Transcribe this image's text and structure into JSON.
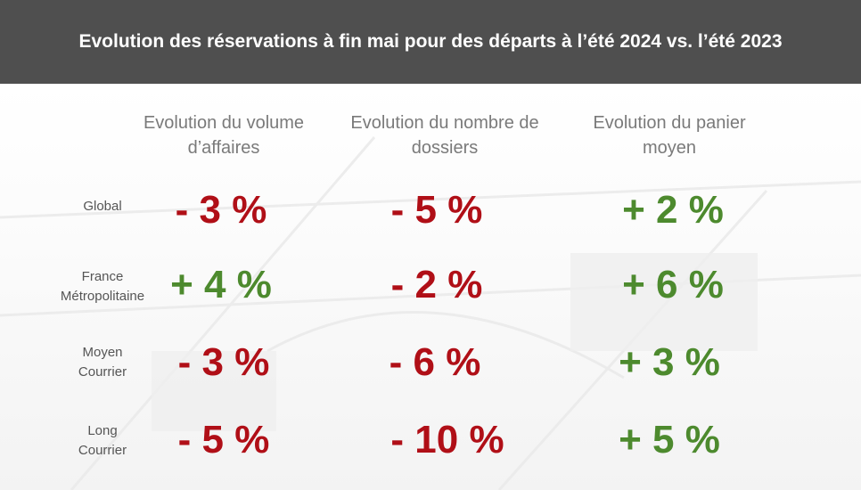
{
  "title": "Evolution des réservations à fin mai pour des départs à l’été 2024 vs. l’été 2023",
  "colors": {
    "negative": "#b00f17",
    "positive": "#4d8a2e",
    "header_bg": "#4f4f4f"
  },
  "columns": [
    {
      "line1": "Evolution du volume",
      "line2": "d’affaires"
    },
    {
      "line1": "Evolution du nombre de",
      "line2": "dossiers"
    },
    {
      "line1": "Evolution du panier",
      "line2": "moyen"
    }
  ],
  "rows": [
    {
      "label1": "Global",
      "label2": "",
      "values": [
        {
          "text": "- 3 %",
          "trend": "negative"
        },
        {
          "text": "- 5 %",
          "trend": "negative"
        },
        {
          "text": "+ 2 %",
          "trend": "positive"
        }
      ]
    },
    {
      "label1": "France",
      "label2": "Métropolitaine",
      "values": [
        {
          "text": "+ 4 %",
          "trend": "positive"
        },
        {
          "text": "- 2 %",
          "trend": "negative"
        },
        {
          "text": "+ 6 %",
          "trend": "positive"
        }
      ]
    },
    {
      "label1": "Moyen",
      "label2": "Courrier",
      "values": [
        {
          "text": "- 3 %",
          "trend": "negative"
        },
        {
          "text": "- 6 %",
          "trend": "negative"
        },
        {
          "text": "+ 3 %",
          "trend": "positive"
        }
      ]
    },
    {
      "label1": "Long",
      "label2": "Courrier",
      "values": [
        {
          "text": "- 5 %",
          "trend": "negative"
        },
        {
          "text": "- 10 %",
          "trend": "negative"
        },
        {
          "text": "+ 5 %",
          "trend": "positive"
        }
      ]
    }
  ]
}
